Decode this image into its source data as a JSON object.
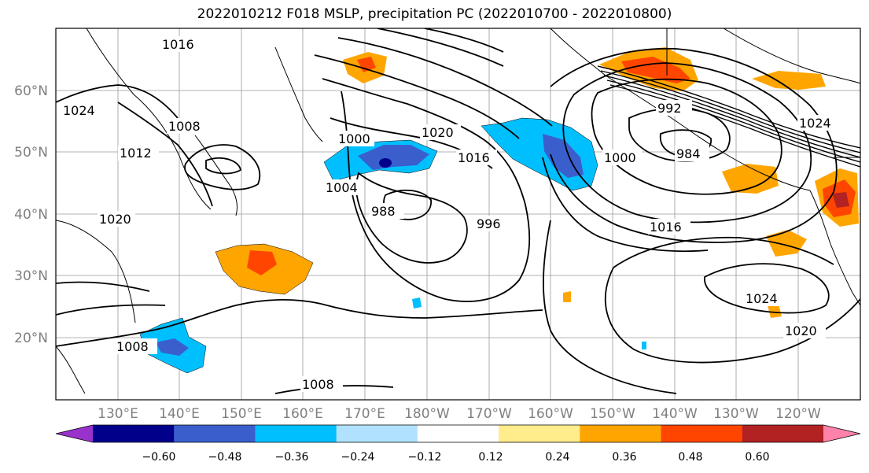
{
  "title": "2022010212 F018 MSLP, precipitation PC (2022010700 - 2022010800)",
  "longitude_ticks": [
    "130°E",
    "140°E",
    "150°E",
    "160°E",
    "170°E",
    "180°W",
    "170°W",
    "160°W",
    "150°W",
    "140°W",
    "130°W",
    "120°W"
  ],
  "latitude_ticks": [
    "60°N",
    "50°N",
    "40°N",
    "30°N",
    "20°N"
  ],
  "contour_labels": [
    "1016",
    "1024",
    "1008",
    "1012",
    "1020",
    "1000",
    "1004",
    "984",
    "988",
    "992",
    "996",
    "1016",
    "1020",
    "1024",
    "1000",
    "1008",
    "1024",
    "1020",
    "1016",
    "1008"
  ],
  "colorbar": {
    "ticks": [
      "−0.60",
      "−0.48",
      "−0.36",
      "−0.24",
      "−0.12",
      "0.12",
      "0.24",
      "0.36",
      "0.48",
      "0.60"
    ],
    "colors": [
      "#9932cc",
      "#00008b",
      "#3a5fcd",
      "#00bfff",
      "#b0e2ff",
      "#ffffff",
      "#ffec8b",
      "#ffa500",
      "#ff4500",
      "#b22222",
      "#ff82ab"
    ]
  },
  "colors": {
    "strong_negative": "#3a5fcd",
    "negative": "#00bfff",
    "positive": "#ffa500",
    "strong_positive": "#ff4500"
  }
}
